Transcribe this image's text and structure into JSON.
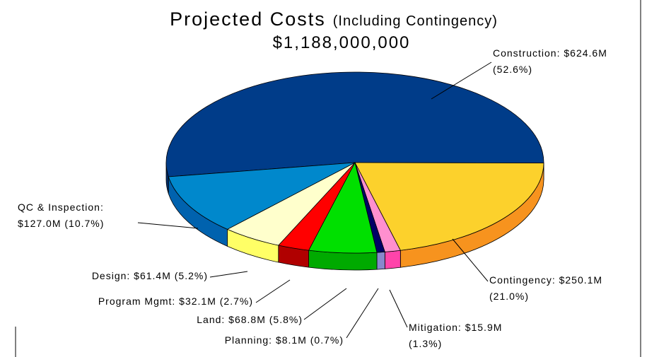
{
  "chart_data": {
    "type": "pie3d",
    "title": "Projected Costs",
    "title_note": "(Including Contingency)",
    "subtitle": "$1,188,000,000",
    "values": [
      624.6,
      250.1,
      15.9,
      8.1,
      68.8,
      32.1,
      61.4,
      127.0
    ],
    "value_labels": [
      [
        "Construction: $624.6M",
        "(52.6%)"
      ],
      [
        "Contingency: $250.1M",
        "(21.0%)"
      ],
      [
        "Mitigation: $15.9M",
        "(1.3%)"
      ],
      [
        "Planning: $8.1M (0.7%)"
      ],
      [
        "Land: $68.8M (5.8%)"
      ],
      [
        "Program Mgmt: $32.1M (2.7%)"
      ],
      [
        "Design: $61.4M (5.2%)"
      ],
      [
        "QC & Inspection:",
        "$127.0M (10.7%)"
      ]
    ],
    "colors": [
      "#003C89",
      "#FCD12C",
      "#FF8FCF",
      "#000066",
      "#00E000",
      "#FF0000",
      "#FFFFCC",
      "#0088CC"
    ],
    "side_colors": [
      "#002E6B",
      "#F7931E",
      "#FF44AA",
      "#8888CC",
      "#00AA00",
      "#B00000",
      "#FFFF66",
      "#0062AE"
    ]
  }
}
